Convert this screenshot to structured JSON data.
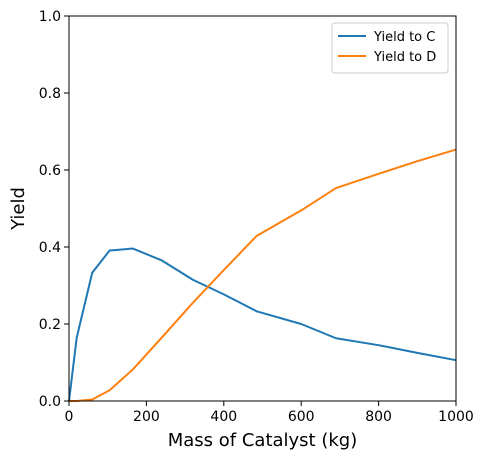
{
  "chart_data": {
    "type": "line",
    "title": "",
    "xlabel": "Mass of Catalyst (kg)",
    "ylabel": "Yield",
    "xlim": [
      0,
      1000
    ],
    "ylim": [
      0,
      1.0
    ],
    "xticks": [
      0,
      200,
      400,
      600,
      800,
      1000
    ],
    "yticks": [
      0.0,
      0.2,
      0.4,
      0.6,
      0.8,
      1.0
    ],
    "xtick_labels": [
      "0",
      "200",
      "400",
      "600",
      "800",
      "1000"
    ],
    "ytick_labels": [
      "0.0",
      "0.2",
      "0.4",
      "0.6",
      "0.8",
      "1.0"
    ],
    "grid": false,
    "legend_position": "top-right",
    "series": [
      {
        "name": "Yield to C",
        "color": "#1f77b4",
        "points": [
          [
            0,
            0.0
          ],
          [
            20,
            0.165
          ],
          [
            60,
            0.333
          ],
          [
            105,
            0.391
          ],
          [
            165,
            0.396
          ],
          [
            240,
            0.365
          ],
          [
            320,
            0.315
          ],
          [
            400,
            0.277
          ],
          [
            485,
            0.233
          ],
          [
            600,
            0.2
          ],
          [
            690,
            0.163
          ],
          [
            800,
            0.145
          ],
          [
            900,
            0.125
          ],
          [
            1000,
            0.106
          ]
        ]
      },
      {
        "name": "Yield to D",
        "color": "#ff7f0e",
        "points": [
          [
            0,
            0.0
          ],
          [
            20,
            0.0
          ],
          [
            60,
            0.004
          ],
          [
            105,
            0.028
          ],
          [
            165,
            0.082
          ],
          [
            240,
            0.165
          ],
          [
            320,
            0.255
          ],
          [
            400,
            0.34
          ],
          [
            485,
            0.429
          ],
          [
            600,
            0.495
          ],
          [
            690,
            0.553
          ],
          [
            800,
            0.59
          ],
          [
            900,
            0.623
          ],
          [
            1000,
            0.653
          ]
        ]
      }
    ]
  }
}
